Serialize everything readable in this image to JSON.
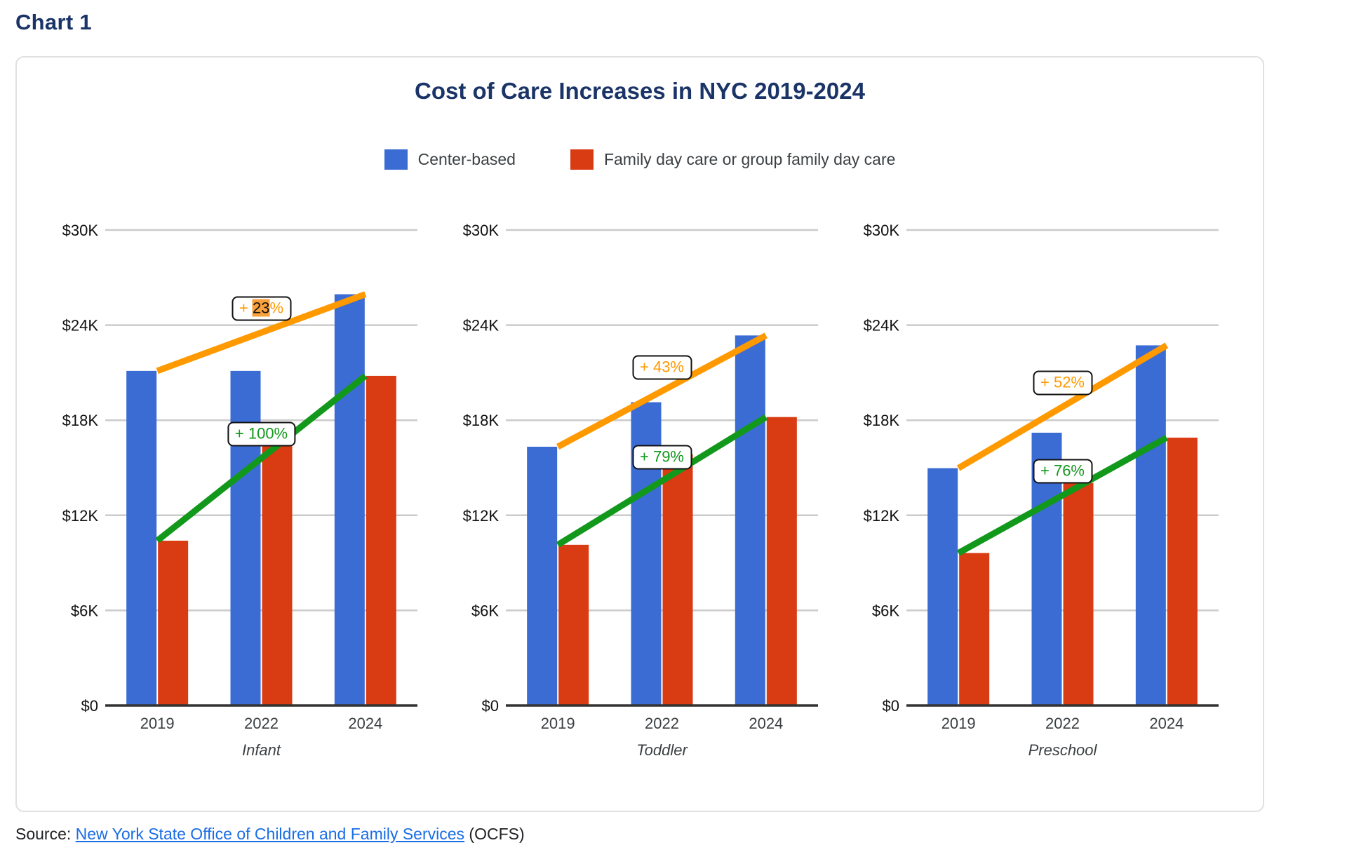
{
  "heading": "Chart 1",
  "source": {
    "prefix": "Source: ",
    "link_text": "New York State Office of Children and Family Services",
    "suffix": " (OCFS)"
  },
  "chart_data": {
    "type": "bar",
    "title": "Cost of Care Increases in NYC 2019-2024",
    "categories": [
      "2019",
      "2022",
      "2024"
    ],
    "ylim": [
      0,
      30000
    ],
    "grid": true,
    "legend_position": "top-center",
    "yticks": [
      {
        "value": 0,
        "label": "$0"
      },
      {
        "value": 6000,
        "label": "$6K"
      },
      {
        "value": 12000,
        "label": "$12K"
      },
      {
        "value": 18000,
        "label": "$18K"
      },
      {
        "value": 24000,
        "label": "$24K"
      },
      {
        "value": 30000,
        "label": "$30K"
      }
    ],
    "legend": [
      {
        "name": "Center-based",
        "color": "#3B6CD4"
      },
      {
        "name": "Family day care or group family day care",
        "color": "#D93B12"
      }
    ],
    "colors": {
      "center_based_bar": "#3B6CD4",
      "family_day_care_bar": "#D93B12",
      "center_based_trend": "#FF9900",
      "family_day_care_trend": "#12981B",
      "selection_highlight": "#F9A13B",
      "title_navy": "#1B3468",
      "gridline": "#CBCBCB",
      "axis": "#333333"
    },
    "panels": [
      {
        "xlabel": "Infant",
        "series": [
          {
            "name": "Center-based",
            "color": "#3B6CD4",
            "values": [
              21112,
              21112,
              25948
            ]
          },
          {
            "name": "Family day care or group family day care",
            "color": "#D93B12",
            "values": [
              10400,
              16640,
              20800
            ]
          }
        ],
        "trend_annotations": [
          {
            "series_index": 0,
            "color": "#FF9900",
            "label": "+ 23%",
            "selected_text": "23"
          },
          {
            "series_index": 1,
            "color": "#12981B",
            "label": "+ 100%",
            "selected_text": null
          }
        ]
      },
      {
        "xlabel": "Toddler",
        "series": [
          {
            "name": "Center-based",
            "color": "#3B6CD4",
            "values": [
              16328,
              19136,
              23348
            ]
          },
          {
            "name": "Family day care or group family day care",
            "color": "#D93B12",
            "values": [
              10140,
              15860,
              18200
            ]
          }
        ],
        "trend_annotations": [
          {
            "series_index": 0,
            "color": "#FF9900",
            "label": "+ 43%",
            "selected_text": null
          },
          {
            "series_index": 1,
            "color": "#12981B",
            "label": "+ 79%",
            "selected_text": null
          }
        ]
      },
      {
        "xlabel": "Preschool",
        "series": [
          {
            "name": "Center-based",
            "color": "#3B6CD4",
            "values": [
              14976,
              17212,
              22724
            ]
          },
          {
            "name": "Family day care or group family day care",
            "color": "#D93B12",
            "values": [
              9620,
              14040,
              16900
            ]
          }
        ],
        "trend_annotations": [
          {
            "series_index": 0,
            "color": "#FF9900",
            "label": "+ 52%",
            "selected_text": null
          },
          {
            "series_index": 1,
            "color": "#12981B",
            "label": "+ 76%",
            "selected_text": null
          }
        ]
      }
    ]
  }
}
